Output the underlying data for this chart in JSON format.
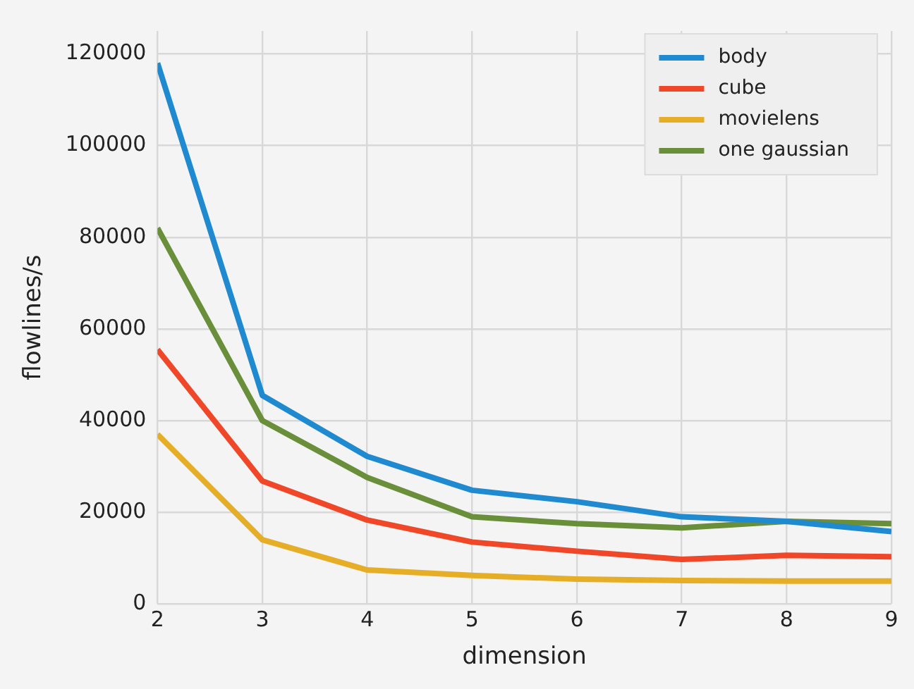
{
  "chart_data": {
    "type": "line",
    "xlabel": "dimension",
    "ylabel": "flowlines/s",
    "x": [
      2,
      3,
      4,
      5,
      6,
      7,
      8,
      9
    ],
    "series": [
      {
        "name": "body",
        "color": "#1f8ad0",
        "values": [
          118000,
          45500,
          32200,
          24800,
          22300,
          19000,
          18000,
          15800
        ]
      },
      {
        "name": "cube",
        "color": "#ef4728",
        "values": [
          55500,
          26800,
          18300,
          13500,
          11500,
          9700,
          10600,
          10300
        ]
      },
      {
        "name": "movielens",
        "color": "#e5ae26",
        "values": [
          37000,
          14000,
          7400,
          6200,
          5400,
          5100,
          5000,
          5000
        ]
      },
      {
        "name": "one gaussian",
        "color": "#6a8f3a",
        "values": [
          82000,
          40000,
          27600,
          19000,
          17500,
          16600,
          18000,
          17500
        ]
      }
    ],
    "xlim": [
      2,
      9
    ],
    "xticks": [
      2,
      3,
      4,
      5,
      6,
      7,
      8,
      9
    ],
    "ylim": [
      0,
      125000
    ],
    "yticks": [
      0,
      20000,
      40000,
      60000,
      80000,
      100000,
      120000
    ],
    "grid": true,
    "legend": "top right",
    "marker": "none",
    "line_style": "solid"
  }
}
